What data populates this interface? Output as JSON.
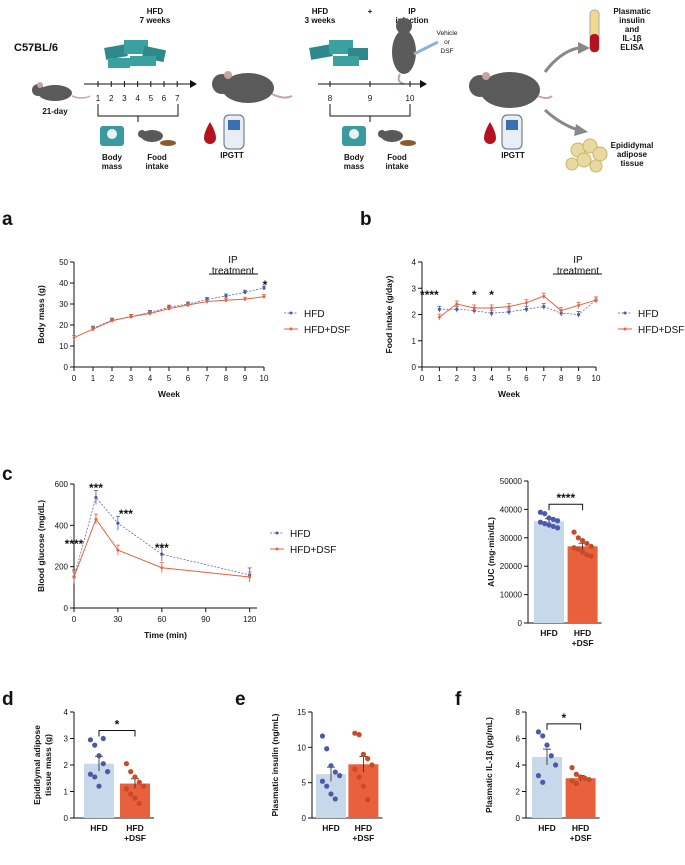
{
  "colors": {
    "hfd": "#4a5aa8",
    "dsf": "#e8603c",
    "hfd_bar": "#c6d8ea",
    "dsf_bar": "#e8603c",
    "mouse": "#5a5a5a",
    "scale": "#3a9aa0",
    "blood": "#b3121f",
    "fat": "#e8d9a0"
  },
  "schematic": {
    "strain": "C57BL/6",
    "age": "21-day",
    "phase1_title": "HFD\n7 weeks",
    "phase1_weeks": [
      "1",
      "2",
      "3",
      "4",
      "5",
      "6",
      "7"
    ],
    "phase2_title": "HFD\n3 weeks",
    "plus": "+",
    "ip_title": "IP\ninjection",
    "vehicle_label": "Vehicle\nor\nDSF",
    "phase2_weeks": [
      "8",
      "9",
      "10"
    ],
    "body_mass": "Body\nmass",
    "food_intake": "Food\nintake",
    "ipgtt": "IPGTT",
    "elisa": "Plasmatic\ninsulin\nand\nIL-1β\nELISA",
    "adipose": "Epididymal\nadipose\ntissue"
  },
  "panels": {
    "a": "a",
    "b": "b",
    "c": "c",
    "d": "d",
    "e": "e",
    "f": "f"
  },
  "legend": {
    "hfd": "HFD",
    "dsf": "HFD+DSF"
  },
  "ip_treatment": "IP\ntreatment",
  "chart_data": [
    {
      "id": "a",
      "type": "line",
      "xlabel": "Week",
      "ylabel": "Body mass (g)",
      "xlim": [
        0,
        10
      ],
      "ylim": [
        0,
        50
      ],
      "xticks": [
        0,
        1,
        2,
        3,
        4,
        5,
        6,
        7,
        8,
        9,
        10
      ],
      "yticks": [
        0,
        10,
        20,
        30,
        40,
        50
      ],
      "series": [
        {
          "name": "HFD",
          "x": [
            1,
            2,
            3,
            4,
            5,
            6,
            7,
            8,
            9,
            10
          ],
          "values": [
            18.5,
            22.3,
            24.0,
            26.0,
            28.5,
            30.0,
            32.2,
            33.8,
            35.6,
            37.6
          ]
        },
        {
          "name": "HFD+DSF",
          "x": [
            0,
            1,
            2,
            3,
            4,
            5,
            6,
            7,
            8,
            9,
            10
          ],
          "values": [
            14,
            18.0,
            22.0,
            24.0,
            25.5,
            27.8,
            29.5,
            31.2,
            31.8,
            32.3,
            33.5
          ]
        }
      ],
      "annotations": [
        {
          "x": 10,
          "text": "*"
        }
      ]
    },
    {
      "id": "b",
      "type": "line",
      "xlabel": "Week",
      "ylabel": "Food intake (g/day)",
      "xlim": [
        0,
        10
      ],
      "ylim": [
        0,
        4
      ],
      "xticks": [
        0,
        1,
        2,
        3,
        4,
        5,
        6,
        7,
        8,
        9,
        10
      ],
      "yticks": [
        0,
        1,
        2,
        3,
        4
      ],
      "series": [
        {
          "name": "HFD",
          "x": [
            1,
            2,
            3,
            4,
            5,
            6,
            7,
            8,
            9,
            10
          ],
          "values": [
            2.2,
            2.2,
            2.15,
            2.05,
            2.1,
            2.2,
            2.3,
            2.05,
            2.0,
            2.55
          ]
        },
        {
          "name": "HFD+DSF",
          "x": [
            1,
            2,
            3,
            4,
            5,
            6,
            7,
            8,
            9,
            10
          ],
          "values": [
            1.9,
            2.4,
            2.25,
            2.25,
            2.3,
            2.45,
            2.7,
            2.15,
            2.35,
            2.55
          ]
        }
      ],
      "annotations": [
        {
          "x": 1,
          "text": "****"
        },
        {
          "x": 3,
          "text": "*"
        },
        {
          "x": 4,
          "text": "*"
        }
      ]
    },
    {
      "id": "c1",
      "type": "line",
      "xlabel": "Time (min)",
      "ylabel": "Blood glucose (mg/dL)",
      "xlim": [
        0,
        125
      ],
      "ylim": [
        0,
        600
      ],
      "xticks": [
        0,
        30,
        60,
        90,
        120
      ],
      "yticks": [
        0,
        200,
        400,
        600
      ],
      "series": [
        {
          "name": "HFD",
          "x": [
            0,
            15,
            30,
            60,
            120
          ],
          "values": [
            150,
            535,
            410,
            260,
            160
          ]
        },
        {
          "name": "HFD+DSF",
          "x": [
            0,
            15,
            30,
            60,
            120
          ],
          "values": [
            150,
            430,
            280,
            195,
            150
          ]
        }
      ],
      "annotations": [
        {
          "x": 15,
          "text": "***"
        },
        {
          "x": 30,
          "text": "***"
        },
        {
          "x": 60,
          "text": "***"
        },
        {
          "x": 0,
          "text": "****"
        }
      ]
    },
    {
      "id": "c2",
      "type": "bar",
      "categories": [
        "HFD",
        "HFD\n+DSF"
      ],
      "values": [
        35800,
        27000
      ],
      "ylabel": "AUC (mg·min/dL)",
      "ylim": [
        0,
        50000
      ],
      "yticks": [
        0,
        10000,
        20000,
        30000,
        40000,
        50000
      ],
      "significance": "****",
      "points": [
        [
          39000,
          38500,
          37000,
          36500,
          36000,
          35500,
          35000,
          34500,
          34000,
          33500
        ],
        [
          32000,
          30000,
          29000,
          28000,
          27000,
          26500,
          26000,
          25000,
          24000,
          23500
        ]
      ]
    },
    {
      "id": "d",
      "type": "bar",
      "categories": [
        "HFD",
        "HFD\n+DSF"
      ],
      "values": [
        2.05,
        1.3
      ],
      "ylabel": "Epididymal adipose\ntissue mass (g)",
      "ylim": [
        0,
        4
      ],
      "yticks": [
        0,
        1,
        2,
        3,
        4
      ],
      "significance": "*",
      "points": [
        [
          2.95,
          2.75,
          2.35,
          2.05,
          1.75,
          1.65,
          1.55,
          1.2,
          3.0
        ],
        [
          2.05,
          1.75,
          1.55,
          1.35,
          1.2,
          1.1,
          0.9,
          0.75,
          0.55
        ]
      ]
    },
    {
      "id": "e",
      "type": "bar",
      "categories": [
        "HFD",
        "HFD\n+DSF"
      ],
      "values": [
        6.2,
        7.6
      ],
      "ylabel": "Plasmatic insulin (ng/mL)",
      "ylim": [
        0,
        15
      ],
      "yticks": [
        0,
        5,
        10,
        15
      ],
      "points": [
        [
          11.6,
          9.8,
          7.4,
          6.5,
          6.0,
          5.2,
          4.5,
          3.4,
          2.7
        ],
        [
          12.0,
          11.8,
          9.0,
          8.4,
          7.5,
          6.9,
          5.8,
          4.5,
          2.6
        ]
      ]
    },
    {
      "id": "f",
      "type": "bar",
      "categories": [
        "HFD",
        "HFD\n+DSF"
      ],
      "values": [
        4.6,
        3.0
      ],
      "ylabel": "Plasmatic IL-1β (pg/mL)",
      "ylim": [
        0,
        8
      ],
      "yticks": [
        0,
        2,
        4,
        6,
        8
      ],
      "significance": "*",
      "points": [
        [
          6.5,
          6.2,
          5.5,
          4.7,
          4.0,
          3.2,
          2.7
        ],
        [
          3.8,
          3.3,
          3.1,
          3.0,
          2.9,
          2.8,
          2.6
        ]
      ]
    }
  ]
}
